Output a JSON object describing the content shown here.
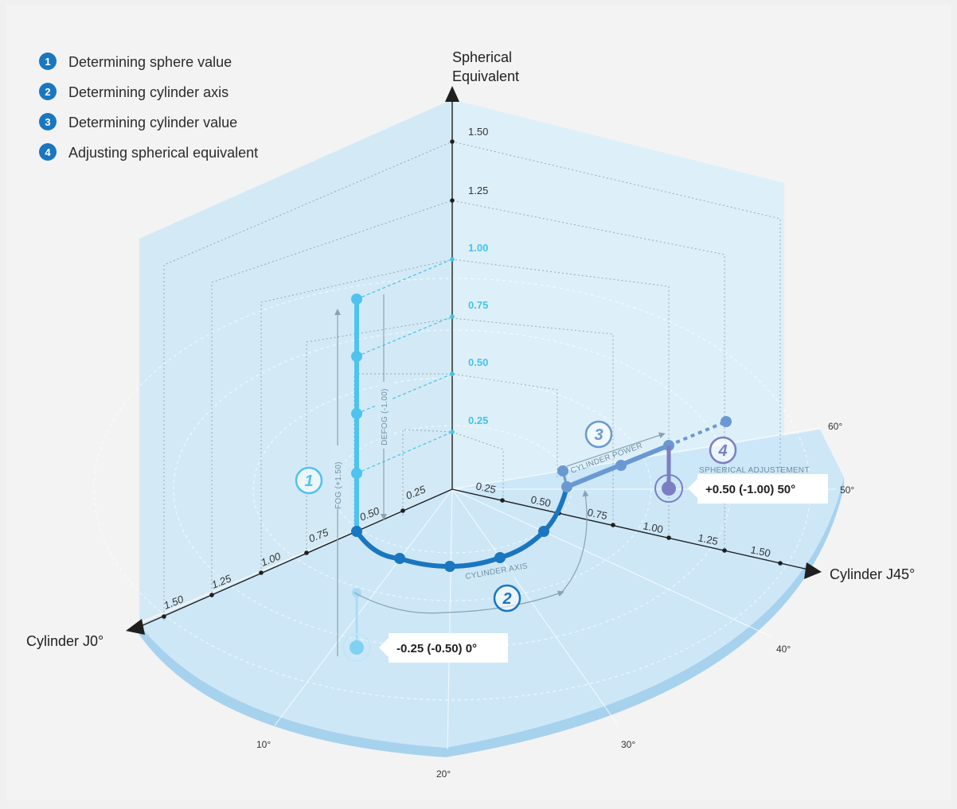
{
  "legend": {
    "items": [
      {
        "num": "1",
        "label": "Determining sphere value"
      },
      {
        "num": "2",
        "label": "Determining cylinder axis"
      },
      {
        "num": "3",
        "label": "Determining cylinder value"
      },
      {
        "num": "4",
        "label": "Adjusting spherical equivalent"
      }
    ]
  },
  "axes": {
    "se_title_line1": "Spherical",
    "se_title_line2": "Equivalent",
    "j0_title": "Cylinder J0°",
    "j45_title": "Cylinder J45°",
    "se_ticks": [
      "1.50",
      "1.25",
      "1.00",
      "0.75",
      "0.50",
      "0.25"
    ],
    "j0_ticks": [
      "0.25",
      "0.50",
      "0.75",
      "1.00",
      "1.25",
      "1.50"
    ],
    "j45_ticks": [
      "0.25",
      "0.50",
      "0.75",
      "1.00",
      "1.25",
      "1.50"
    ],
    "angle_labels": [
      "10°",
      "20°",
      "30°",
      "40°",
      "50°",
      "60°"
    ]
  },
  "annotations": {
    "fog": "FOG (+1.50)",
    "defog": "DEFOG (-1.00)",
    "cylinder_axis": "CYLINDER AXIS",
    "cylinder_power": "CYLINDER POWER",
    "spherical_adjustment": "SPHERICAL ADJUSTEMENT"
  },
  "steps": {
    "s1": "1",
    "s2": "2",
    "s3": "3",
    "s4": "4"
  },
  "prescriptions": {
    "start": "-0.25 (-0.50) 0°",
    "final": "+0.50 (-1.00) 50°"
  },
  "colors": {
    "background": "#f0f0f1",
    "panel": "#d3ecf9",
    "step1": "#4fc3ef",
    "step2": "#1a76bf",
    "step3": "#6a99d2",
    "step4": "#7b7fc2",
    "legend_badge": "#1a76bf"
  }
}
